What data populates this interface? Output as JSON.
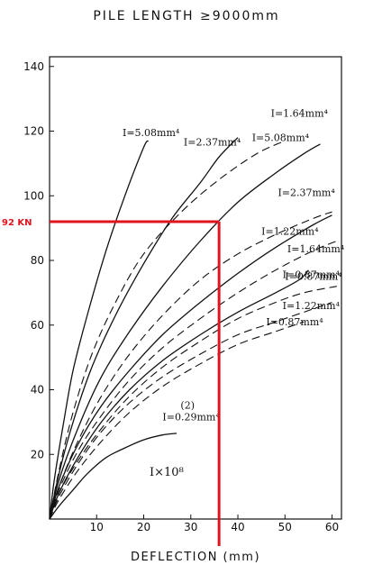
{
  "chart_data": {
    "type": "line",
    "title": "PILE LENGTH ≥9000mm",
    "xlabel": "DEFLECTION (mm)",
    "ylabel": "",
    "xlim": [
      0,
      62
    ],
    "ylim": [
      0,
      143
    ],
    "x_ticks": [
      10,
      20,
      30,
      40,
      50,
      60
    ],
    "y_ticks": [
      20,
      40,
      60,
      80,
      100,
      120,
      140
    ],
    "grid": false,
    "scale_note": "I×10⁸",
    "series": [
      {
        "name": "I=5.08mm⁴",
        "style": "solid",
        "label_anchor": [
          15.5,
          118.5
        ],
        "points": [
          [
            0,
            0
          ],
          [
            1,
            12
          ],
          [
            3,
            30
          ],
          [
            5,
            46
          ],
          [
            8,
            63
          ],
          [
            12,
            83
          ],
          [
            16,
            100
          ],
          [
            20,
            115
          ],
          [
            21,
            117
          ]
        ]
      },
      {
        "name": "I=5.08mm⁴",
        "style": "dashed",
        "label_anchor": [
          43,
          117
        ],
        "points": [
          [
            0,
            0
          ],
          [
            2,
            15
          ],
          [
            5,
            33
          ],
          [
            9,
            51
          ],
          [
            14,
            67
          ],
          [
            20,
            82
          ],
          [
            28,
            95
          ],
          [
            36,
            105
          ],
          [
            44,
            113
          ],
          [
            50,
            117
          ]
        ]
      },
      {
        "name": "I=2.37mm⁴",
        "style": "solid",
        "label_anchor": [
          28.5,
          115.5
        ],
        "points": [
          [
            0,
            0
          ],
          [
            2,
            14
          ],
          [
            5,
            30
          ],
          [
            9,
            47
          ],
          [
            14,
            63
          ],
          [
            20,
            79
          ],
          [
            26,
            93
          ],
          [
            32,
            104
          ],
          [
            36,
            112
          ],
          [
            40,
            118
          ]
        ]
      },
      {
        "name": "I=1.64mm⁴",
        "style": "solid",
        "label_anchor": [
          47,
          124.5
        ],
        "points": [
          [
            0,
            0
          ],
          [
            2,
            12
          ],
          [
            6,
            28
          ],
          [
            11,
            44
          ],
          [
            17,
            58
          ],
          [
            24,
            72
          ],
          [
            32,
            86
          ],
          [
            40,
            98
          ],
          [
            48,
            107
          ],
          [
            54,
            113
          ],
          [
            57.5,
            116
          ]
        ]
      },
      {
        "name": "I=2.37mm⁴",
        "style": "dashed",
        "label_anchor": [
          48.5,
          100
        ],
        "points": [
          [
            0,
            0
          ],
          [
            2,
            10
          ],
          [
            6,
            24
          ],
          [
            11,
            38
          ],
          [
            17,
            51
          ],
          [
            24,
            63
          ],
          [
            32,
            74
          ],
          [
            40,
            82
          ],
          [
            48,
            88
          ],
          [
            56,
            93
          ],
          [
            60,
            95
          ]
        ]
      },
      {
        "name": "I=1.22mm⁴",
        "style": "solid",
        "label_anchor": [
          45,
          88
        ],
        "points": [
          [
            0,
            0
          ],
          [
            2,
            10
          ],
          [
            6,
            23
          ],
          [
            11,
            35
          ],
          [
            17,
            46
          ],
          [
            24,
            57
          ],
          [
            32,
            67
          ],
          [
            40,
            76
          ],
          [
            48,
            84
          ],
          [
            56,
            91
          ],
          [
            60,
            94
          ]
        ]
      },
      {
        "name": "I=1.64mm⁴",
        "style": "dashed",
        "label_anchor": [
          50.5,
          82.5
        ],
        "points": [
          [
            0,
            0
          ],
          [
            2,
            9
          ],
          [
            6,
            21
          ],
          [
            11,
            32
          ],
          [
            17,
            43
          ],
          [
            24,
            53
          ],
          [
            32,
            62
          ],
          [
            40,
            70
          ],
          [
            48,
            77
          ],
          [
            56,
            83
          ],
          [
            61,
            86
          ]
        ]
      },
      {
        "name": "I=0.87mm⁴",
        "style": "solid",
        "label_anchor": [
          49.5,
          74.5
        ],
        "points": [
          [
            0,
            0
          ],
          [
            2,
            8
          ],
          [
            6,
            19
          ],
          [
            11,
            30
          ],
          [
            17,
            40
          ],
          [
            24,
            49
          ],
          [
            32,
            57
          ],
          [
            40,
            64
          ],
          [
            48,
            70
          ],
          [
            53,
            74
          ],
          [
            55,
            77
          ]
        ]
      },
      {
        "name": "I=0.87mm⁴",
        "style": "dashed",
        "label_anchor": [
          50,
          74
        ],
        "points": [
          [
            0,
            0
          ],
          [
            2,
            8
          ],
          [
            6,
            18
          ],
          [
            11,
            28
          ],
          [
            17,
            38
          ],
          [
            24,
            47
          ],
          [
            32,
            55
          ],
          [
            40,
            62
          ],
          [
            48,
            67
          ],
          [
            54,
            70
          ],
          [
            61,
            72
          ]
        ]
      },
      {
        "name": "I=1.22mm⁴",
        "style": "dashed",
        "label_anchor": [
          49.5,
          65
        ],
        "points": [
          [
            0,
            0
          ],
          [
            2,
            7
          ],
          [
            6,
            17
          ],
          [
            11,
            27
          ],
          [
            17,
            36
          ],
          [
            24,
            44
          ],
          [
            32,
            51
          ],
          [
            40,
            57
          ],
          [
            48,
            61
          ],
          [
            56,
            65
          ],
          [
            60,
            67
          ]
        ]
      },
      {
        "name": "I=0.87mm⁴",
        "style": "dashed",
        "label_anchor": [
          46,
          60
        ],
        "points": [
          [
            0,
            0
          ],
          [
            2,
            6
          ],
          [
            6,
            15
          ],
          [
            11,
            24
          ],
          [
            17,
            33
          ],
          [
            24,
            41
          ],
          [
            32,
            48
          ],
          [
            40,
            54
          ],
          [
            48,
            58
          ],
          [
            54,
            61
          ]
        ]
      },
      {
        "name": "I=0.29mm⁴",
        "style": "solid",
        "label_anchor": [
          24,
          30.5
        ],
        "note": "(2)",
        "points": [
          [
            0,
            0
          ],
          [
            2,
            4
          ],
          [
            5,
            9
          ],
          [
            8,
            14
          ],
          [
            12,
            19
          ],
          [
            16,
            22
          ],
          [
            20,
            24.5
          ],
          [
            24,
            26
          ],
          [
            27,
            26.5
          ]
        ]
      }
    ],
    "annotations": [
      {
        "type": "reference-lines",
        "label": "92 KN",
        "color": "#e0141e",
        "x": 36,
        "y": 92
      }
    ]
  }
}
